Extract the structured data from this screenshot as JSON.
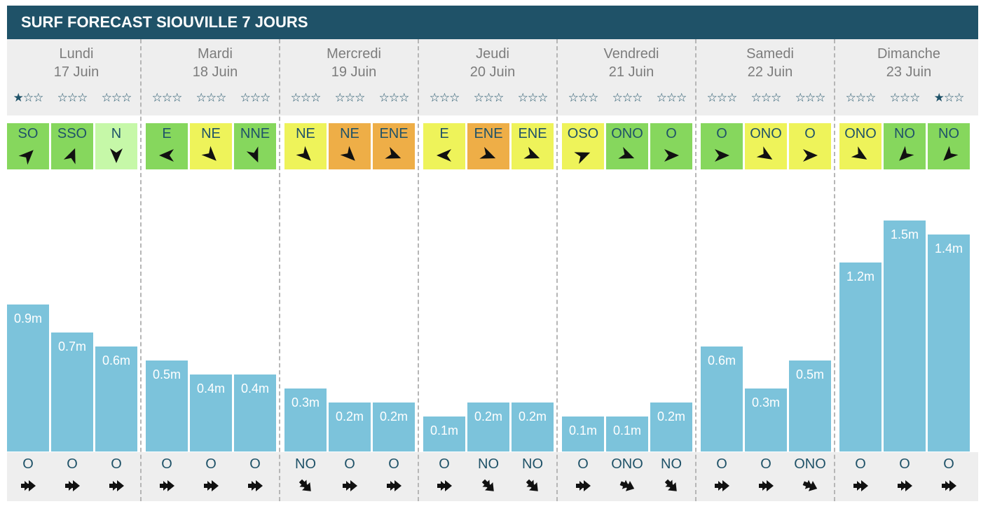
{
  "title": "SURF FORECAST SIOUVILLE 7 JOURS",
  "colors": {
    "header": "#1f5268",
    "bar": "#7cc3db",
    "panel": "#eeeeee",
    "text_dark": "#1f5268",
    "text_grey": "#7c7c7c",
    "wind_green": "#86d75d",
    "wind_yellow": "#eef35a",
    "wind_orange": "#eeae47",
    "wind_lightgreen": "#c6f8a8"
  },
  "icons": {
    "rating": "star-icon",
    "wind": "wind-arrow-icon",
    "swell": "swell-arrow-icon"
  },
  "days": [
    {
      "name": "Lundi",
      "date": "17 Juin",
      "slots": [
        {
          "stars": 1,
          "wind": "SO",
          "wind_color": "green",
          "wind_deg": 45,
          "height": "0.9m",
          "value": 0.9,
          "swell": "O",
          "swell_deg": 90
        },
        {
          "stars": 0,
          "wind": "SSO",
          "wind_color": "green",
          "wind_deg": 22,
          "height": "0.7m",
          "value": 0.7,
          "swell": "O",
          "swell_deg": 90
        },
        {
          "stars": 0,
          "wind": "N",
          "wind_color": "lightgreen",
          "wind_deg": 180,
          "height": "0.6m",
          "value": 0.6,
          "swell": "O",
          "swell_deg": 90
        }
      ]
    },
    {
      "name": "Mardi",
      "date": "18 Juin",
      "slots": [
        {
          "stars": 0,
          "wind": "E",
          "wind_color": "green",
          "wind_deg": 270,
          "height": "0.5m",
          "value": 0.5,
          "swell": "O",
          "swell_deg": 90
        },
        {
          "stars": 0,
          "wind": "NE",
          "wind_color": "yellow",
          "wind_deg": 135,
          "height": "0.4m",
          "value": 0.4,
          "swell": "O",
          "swell_deg": 90
        },
        {
          "stars": 0,
          "wind": "NNE",
          "wind_color": "green",
          "wind_deg": 157,
          "height": "0.4m",
          "value": 0.4,
          "swell": "O",
          "swell_deg": 90
        }
      ]
    },
    {
      "name": "Mercredi",
      "date": "19 Juin",
      "slots": [
        {
          "stars": 0,
          "wind": "NE",
          "wind_color": "yellow",
          "wind_deg": 135,
          "height": "0.3m",
          "value": 0.3,
          "swell": "NO",
          "swell_deg": 135
        },
        {
          "stars": 0,
          "wind": "NE",
          "wind_color": "orange",
          "wind_deg": 135,
          "height": "0.2m",
          "value": 0.2,
          "swell": "O",
          "swell_deg": 90
        },
        {
          "stars": 0,
          "wind": "ENE",
          "wind_color": "orange",
          "wind_deg": 112,
          "height": "0.2m",
          "value": 0.2,
          "swell": "O",
          "swell_deg": 90
        }
      ]
    },
    {
      "name": "Jeudi",
      "date": "20 Juin",
      "slots": [
        {
          "stars": 0,
          "wind": "E",
          "wind_color": "yellow",
          "wind_deg": 270,
          "height": "0.1m",
          "value": 0.1,
          "swell": "O",
          "swell_deg": 90
        },
        {
          "stars": 0,
          "wind": "ENE",
          "wind_color": "orange",
          "wind_deg": 112,
          "height": "0.2m",
          "value": 0.2,
          "swell": "NO",
          "swell_deg": 135
        },
        {
          "stars": 0,
          "wind": "ENE",
          "wind_color": "yellow",
          "wind_deg": 112,
          "height": "0.2m",
          "value": 0.2,
          "swell": "NO",
          "swell_deg": 135
        }
      ]
    },
    {
      "name": "Vendredi",
      "date": "21 Juin",
      "slots": [
        {
          "stars": 0,
          "wind": "OSO",
          "wind_color": "yellow",
          "wind_deg": 68,
          "height": "0.1m",
          "value": 0.1,
          "swell": "O",
          "swell_deg": 90
        },
        {
          "stars": 0,
          "wind": "ONO",
          "wind_color": "green",
          "wind_deg": 112,
          "height": "0.1m",
          "value": 0.1,
          "swell": "ONO",
          "swell_deg": 112
        },
        {
          "stars": 0,
          "wind": "O",
          "wind_color": "green",
          "wind_deg": 90,
          "height": "0.2m",
          "value": 0.2,
          "swell": "NO",
          "swell_deg": 135
        }
      ]
    },
    {
      "name": "Samedi",
      "date": "22 Juin",
      "slots": [
        {
          "stars": 0,
          "wind": "O",
          "wind_color": "green",
          "wind_deg": 90,
          "height": "0.6m",
          "value": 0.6,
          "swell": "O",
          "swell_deg": 90
        },
        {
          "stars": 0,
          "wind": "ONO",
          "wind_color": "yellow",
          "wind_deg": 122,
          "height": "0.3m",
          "value": 0.3,
          "swell": "O",
          "swell_deg": 90
        },
        {
          "stars": 0,
          "wind": "O",
          "wind_color": "yellow",
          "wind_deg": 90,
          "height": "0.5m",
          "value": 0.5,
          "swell": "ONO",
          "swell_deg": 112
        }
      ]
    },
    {
      "name": "Dimanche",
      "date": "23 Juin",
      "slots": [
        {
          "stars": 0,
          "wind": "ONO",
          "wind_color": "yellow",
          "wind_deg": 122,
          "height": "1.2m",
          "value": 1.2,
          "swell": "O",
          "swell_deg": 90
        },
        {
          "stars": 0,
          "wind": "NO",
          "wind_color": "green",
          "wind_deg": 225,
          "height": "1.5m",
          "value": 1.5,
          "swell": "O",
          "swell_deg": 90
        },
        {
          "stars": 1,
          "wind": "NO",
          "wind_color": "green",
          "wind_deg": 225,
          "height": "1.4m",
          "value": 1.4,
          "swell": "O",
          "swell_deg": 90
        }
      ]
    }
  ],
  "chart_data": {
    "type": "bar",
    "title": "SURF FORECAST SIOUVILLE 7 JOURS",
    "categories": [
      "Lundi 17 Juin",
      "Mardi 18 Juin",
      "Mercredi 19 Juin",
      "Jeudi 20 Juin",
      "Vendredi 21 Juin",
      "Samedi 22 Juin",
      "Dimanche 23 Juin"
    ],
    "x": [
      "Lundi 17 Juin",
      "Lundi 17 Juin",
      "Lundi 17 Juin",
      "Mardi 18 Juin",
      "Mardi 18 Juin",
      "Mardi 18 Juin",
      "Mercredi 19 Juin",
      "Mercredi 19 Juin",
      "Mercredi 19 Juin",
      "Jeudi 20 Juin",
      "Jeudi 20 Juin",
      "Jeudi 20 Juin",
      "Vendredi 21 Juin",
      "Vendredi 21 Juin",
      "Vendredi 21 Juin",
      "Samedi 22 Juin",
      "Samedi 22 Juin",
      "Samedi 22 Juin",
      "Dimanche 23 Juin",
      "Dimanche 23 Juin",
      "Dimanche 23 Juin"
    ],
    "values": [
      0.9,
      0.7,
      0.6,
      0.5,
      0.4,
      0.4,
      0.3,
      0.2,
      0.2,
      0.1,
      0.2,
      0.2,
      0.1,
      0.1,
      0.2,
      0.6,
      0.3,
      0.5,
      1.2,
      1.5,
      1.4
    ],
    "data_labels": [
      "0.9m",
      "0.7m",
      "0.6m",
      "0.5m",
      "0.4m",
      "0.4m",
      "0.3m",
      "0.2m",
      "0.2m",
      "0.1m",
      "0.2m",
      "0.2m",
      "0.1m",
      "0.1m",
      "0.2m",
      "0.6m",
      "0.3m",
      "0.5m",
      "1.2m",
      "1.5m",
      "1.4m"
    ],
    "ylim": [
      0,
      1.5
    ],
    "grid": false,
    "legend": false
  }
}
